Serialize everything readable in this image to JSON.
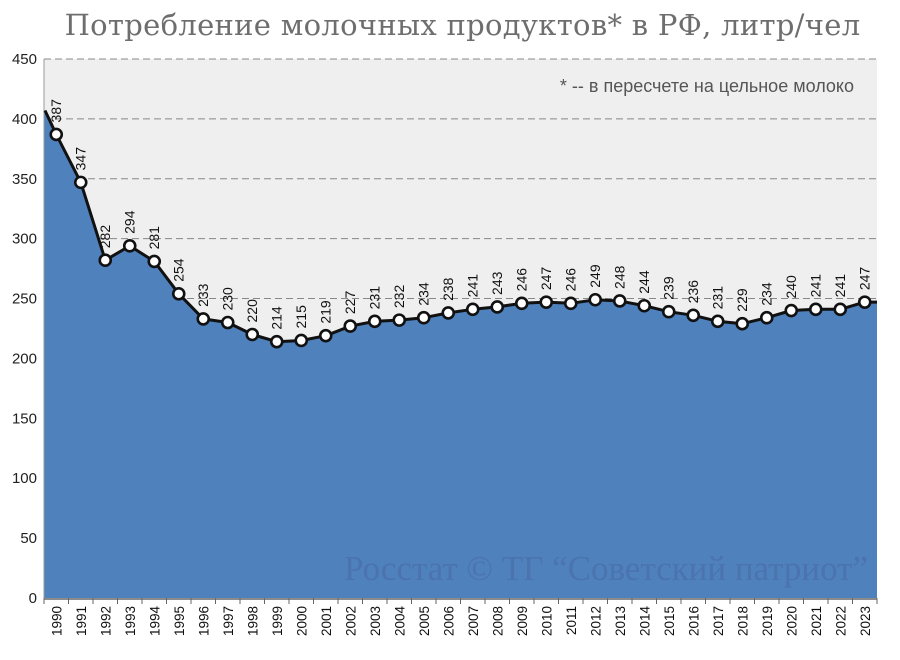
{
  "chart_data": {
    "type": "area",
    "title": "Потребление молочных продуктов* в РФ, литр/чел",
    "note": "* -- в пересчете на цельное молоко",
    "watermark": "Росстат © ТГ “Советский патриот”",
    "x": [
      "1990",
      "1991",
      "1992",
      "1993",
      "1994",
      "1995",
      "1996",
      "1997",
      "1998",
      "1999",
      "2000",
      "2001",
      "2002",
      "2003",
      "2004",
      "2005",
      "2006",
      "2007",
      "2008",
      "2009",
      "2010",
      "2011",
      "2012",
      "2013",
      "2014",
      "2015",
      "2016",
      "2017",
      "2018",
      "2019",
      "2020",
      "2021",
      "2022",
      "2023"
    ],
    "values": [
      387,
      347,
      282,
      294,
      281,
      254,
      233,
      230,
      220,
      214,
      215,
      219,
      227,
      231,
      232,
      234,
      238,
      241,
      243,
      246,
      247,
      246,
      249,
      248,
      244,
      239,
      236,
      231,
      229,
      234,
      240,
      241,
      241,
      247
    ],
    "ylim": [
      0,
      450
    ],
    "yticks": [
      0,
      50,
      100,
      150,
      200,
      250,
      300,
      350,
      400,
      450
    ],
    "grid": true,
    "colors": {
      "area": "#4f81bd",
      "plot_bg": "#efefef",
      "line": "#111111",
      "marker_fill": "#ffffff"
    }
  }
}
